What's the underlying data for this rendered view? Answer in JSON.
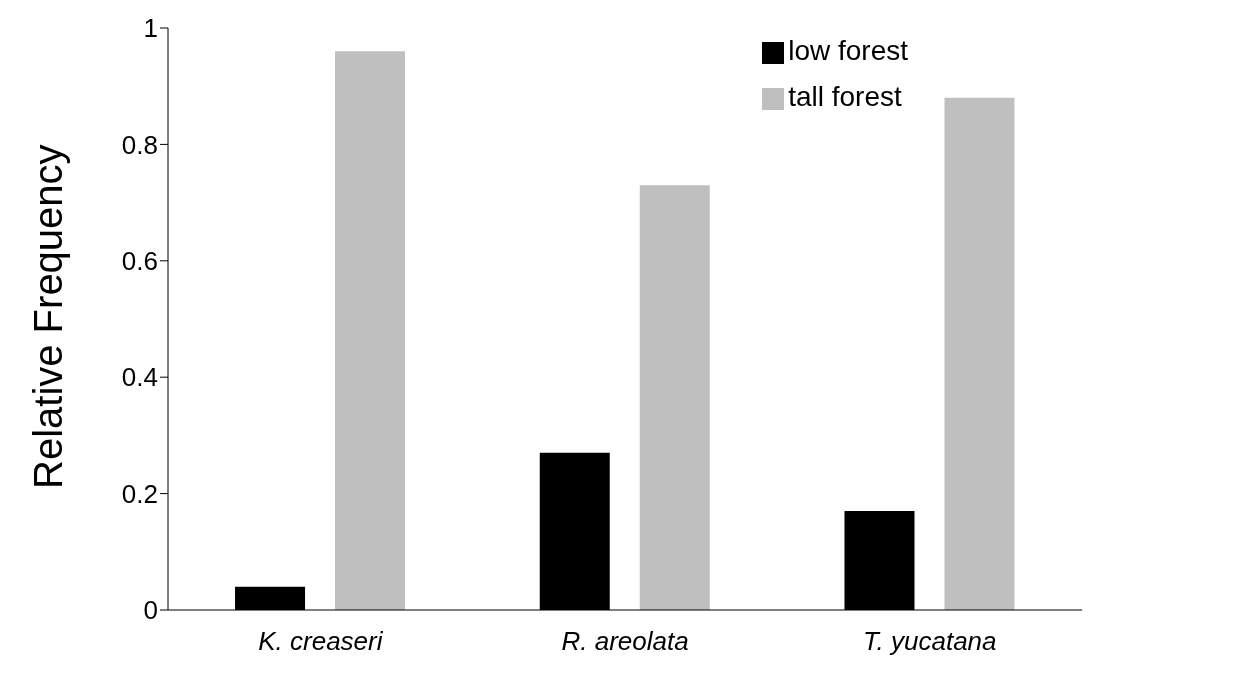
{
  "chart_data": {
    "type": "bar",
    "ylabel": "Relative Frequency",
    "categories": [
      "K. creaseri",
      "R. areolata",
      "T. yucatana"
    ],
    "series": [
      {
        "name": "low forest",
        "color": "#000000",
        "values": [
          0.04,
          0.27,
          0.17
        ]
      },
      {
        "name": "tall forest",
        "color": "#bfbfbf",
        "values": [
          0.96,
          0.73,
          0.88
        ]
      }
    ],
    "ylim": [
      0,
      1
    ],
    "yticks": [
      0,
      0.2,
      0.4,
      0.6,
      0.8,
      1
    ],
    "grid": false,
    "legend": "top right"
  }
}
